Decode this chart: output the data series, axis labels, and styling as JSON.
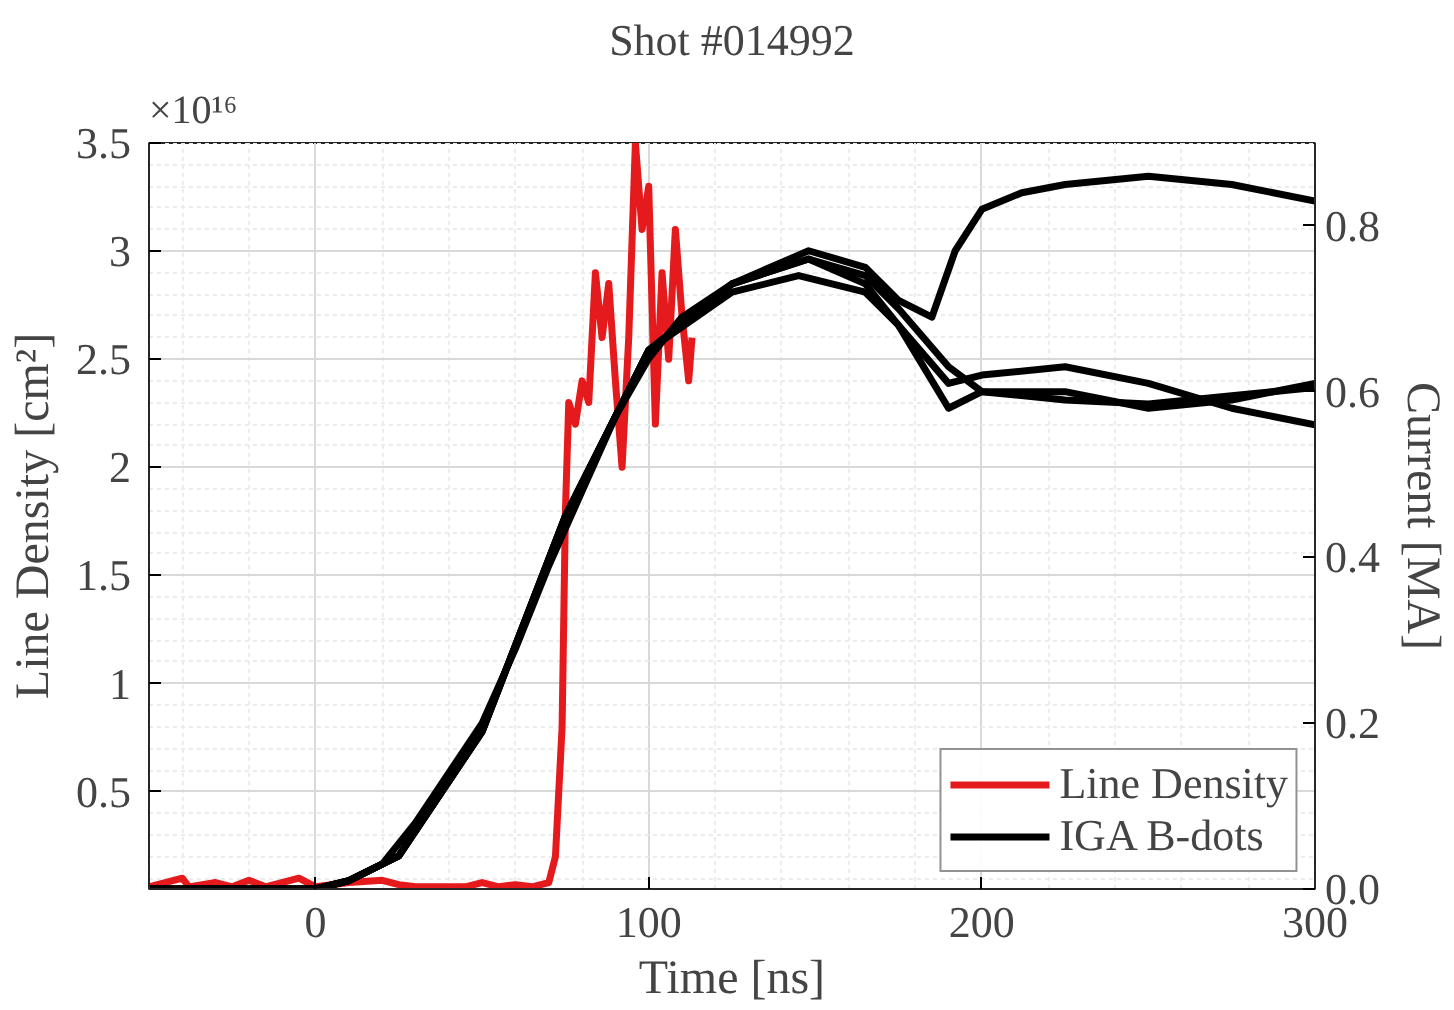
{
  "chart_data": {
    "type": "line",
    "title": "Shot #014992",
    "xlabel": "Time [ns]",
    "ylabel": "Line Density [cm²]",
    "y2label": "Current [MA]",
    "annotations": [
      "×10¹⁶"
    ],
    "xlim": [
      -50,
      300
    ],
    "xticks": [
      0,
      100,
      200,
      300
    ],
    "ylim": [
      0.05,
      3.5
    ],
    "yticks": [
      0.5,
      1,
      1.5,
      2,
      2.5,
      3,
      3.5
    ],
    "y2lim": [
      0,
      0.9
    ],
    "y2ticks": [
      {
        "value": 0,
        "label": "0.0"
      },
      {
        "value": 0.2,
        "label": "0.2"
      },
      {
        "value": 0.4,
        "label": "0.4"
      },
      {
        "value": 0.6,
        "label": "0.6"
      },
      {
        "value": 0.8,
        "label": "0.8"
      }
    ],
    "grid": true,
    "legend": "bottom right",
    "line_style": "solid",
    "series": [
      {
        "name": "Line Density",
        "color": "#e41a1c",
        "x": [
          -50,
          -40,
          -38,
          -30,
          -25,
          -20,
          -15,
          -5,
          0,
          10,
          20,
          25,
          30,
          45,
          50,
          55,
          60,
          65,
          70,
          72,
          74,
          75,
          76,
          78,
          80,
          82,
          84,
          86,
          88,
          90,
          92,
          94,
          96,
          98,
          100,
          102,
          104,
          106,
          108,
          110,
          112,
          113
        ],
        "values": [
          0.06,
          0.1,
          0.06,
          0.08,
          0.06,
          0.09,
          0.06,
          0.1,
          0.06,
          0.08,
          0.09,
          0.07,
          0.06,
          0.06,
          0.08,
          0.06,
          0.07,
          0.06,
          0.08,
          0.2,
          0.8,
          1.8,
          2.3,
          2.2,
          2.4,
          2.3,
          2.9,
          2.6,
          2.85,
          2.4,
          2.0,
          2.6,
          3.5,
          3.1,
          3.3,
          2.2,
          2.9,
          2.5,
          3.1,
          2.7,
          2.4,
          2.6
        ]
      },
      {
        "name": "IGA B-dots",
        "color": "#000000",
        "axis": "y2",
        "x": [
          -50,
          0,
          10,
          20,
          30,
          40,
          50,
          60,
          70,
          80,
          90,
          100,
          110,
          125,
          148,
          165,
          175,
          185,
          192,
          200,
          212,
          225,
          250,
          275,
          300
        ],
        "values": [
          0,
          0,
          0.01,
          0.03,
          0.08,
          0.14,
          0.2,
          0.29,
          0.39,
          0.48,
          0.57,
          0.64,
          0.69,
          0.73,
          0.77,
          0.75,
          0.71,
          0.69,
          0.77,
          0.82,
          0.84,
          0.85,
          0.86,
          0.85,
          0.83
        ]
      },
      {
        "color": "#000000",
        "axis": "y2",
        "x": [
          -50,
          0,
          10,
          25,
          50,
          75,
          100,
          125,
          148,
          165,
          175,
          190,
          200,
          225,
          250,
          275,
          300
        ],
        "values": [
          0,
          0,
          0.01,
          0.04,
          0.19,
          0.45,
          0.65,
          0.73,
          0.76,
          0.73,
          0.68,
          0.58,
          0.6,
          0.6,
          0.58,
          0.59,
          0.61
        ]
      },
      {
        "color": "#000000",
        "axis": "y2",
        "x": [
          -50,
          0,
          10,
          25,
          50,
          75,
          100,
          125,
          145,
          165,
          175,
          190,
          200,
          225,
          250,
          275,
          300
        ],
        "values": [
          0,
          0,
          0.01,
          0.04,
          0.19,
          0.45,
          0.65,
          0.72,
          0.74,
          0.72,
          0.68,
          0.61,
          0.62,
          0.63,
          0.61,
          0.58,
          0.56
        ]
      },
      {
        "color": "#000000",
        "axis": "y2",
        "x": [
          -50,
          0,
          10,
          25,
          50,
          75,
          100,
          125,
          148,
          165,
          175,
          190,
          200,
          225,
          250,
          275,
          300
        ],
        "values": [
          0,
          0,
          0.01,
          0.04,
          0.19,
          0.45,
          0.65,
          0.73,
          0.76,
          0.74,
          0.7,
          0.63,
          0.6,
          0.59,
          0.585,
          0.595,
          0.605
        ]
      }
    ]
  }
}
